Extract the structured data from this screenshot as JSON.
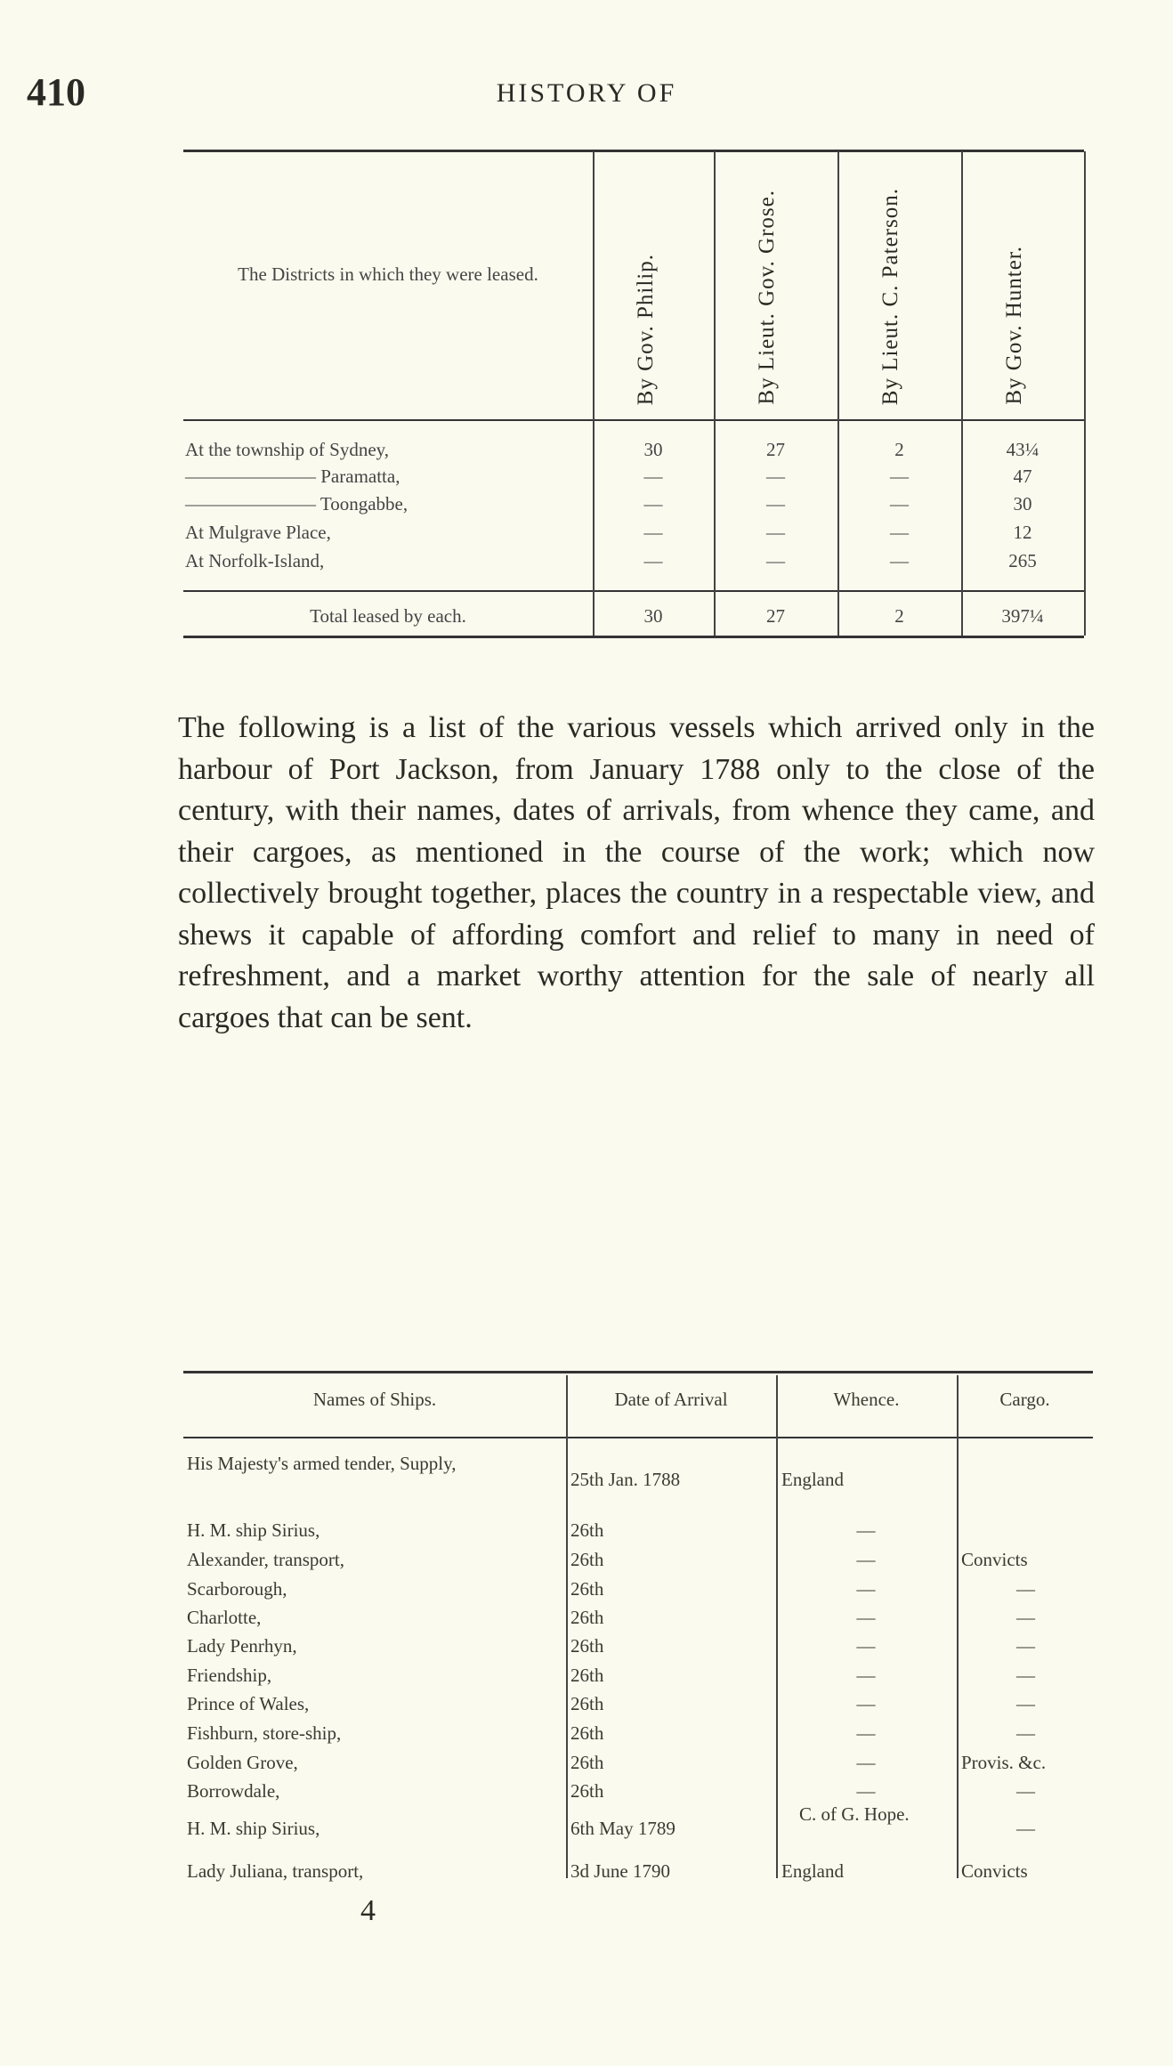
{
  "header": {
    "page_number": "410",
    "running_head": "HISTORY OF"
  },
  "table1": {
    "district_header": "The Districts in which they were leased.",
    "columns": [
      "By Gov. Philip.",
      "By Lieut. Gov. Grose.",
      "By Lieut. C. Paterson.",
      "By Gov. Hunter."
    ],
    "rows": [
      {
        "district": "At the township of Sydney,",
        "values": [
          "30",
          "27",
          "2",
          "43¼"
        ]
      },
      {
        "district": "——————— Paramatta,",
        "values": [
          "—",
          "—",
          "—",
          "47"
        ]
      },
      {
        "district": "——————— Toongabbe,",
        "values": [
          "—",
          "—",
          "—",
          "30"
        ]
      },
      {
        "district": "At Mulgrave Place,",
        "values": [
          "—",
          "—",
          "—",
          "12"
        ]
      },
      {
        "district": "At Norfolk-Island,",
        "values": [
          "—",
          "—",
          "—",
          "265"
        ]
      }
    ],
    "total": {
      "label": "Total leased by each.",
      "values": [
        "30",
        "27",
        "2",
        "397¼"
      ]
    }
  },
  "paragraph": "The following is a list of the various vessels which arrived only in the harbour of Port Jackson, from January 1788 only to the close of the century, with their names, dates of arrivals, from whence they came, and their cargoes, as mentioned in the course of the work; which now collectively brought together, places the country in a respectable view, and shews it capable of affording comfort and relief to many in need of refreshment, and a market worthy attention for the sale of nearly all cargoes that can be sent.",
  "table2": {
    "columns": [
      "Names of Ships.",
      "Date of Arrival",
      "Whence.",
      "Cargo."
    ],
    "rows": [
      {
        "name": "His Majesty's armed tender, Supply,",
        "date": "25th Jan. 1788",
        "whence": "England",
        "cargo": ""
      },
      {
        "name": "H. M. ship Sirius,",
        "date": "26th",
        "whence": "—",
        "cargo": ""
      },
      {
        "name": "Alexander, transport,",
        "date": "26th",
        "whence": "—",
        "cargo": "Convicts"
      },
      {
        "name": "Scarborough,",
        "date": "26th",
        "whence": "—",
        "cargo": "—"
      },
      {
        "name": "Charlotte,",
        "date": "26th",
        "whence": "—",
        "cargo": "—"
      },
      {
        "name": "Lady Penrhyn,",
        "date": "26th",
        "whence": "—",
        "cargo": "—"
      },
      {
        "name": "Friendship,",
        "date": "26th",
        "whence": "—",
        "cargo": "—"
      },
      {
        "name": "Prince of Wales,",
        "date": "26th",
        "whence": "—",
        "cargo": "—"
      },
      {
        "name": "Fishburn, store-ship,",
        "date": "26th",
        "whence": "—",
        "cargo": "—"
      },
      {
        "name": "Golden Grove,",
        "date": "26th",
        "whence": "—",
        "cargo": "Provis. &c."
      },
      {
        "name": "Borrowdale,",
        "date": "26th",
        "whence": "—",
        "cargo": "—"
      },
      {
        "name": "H. M. ship Sirius,",
        "date": "6th May 1789",
        "whence": "C. of G. Hope.",
        "cargo": "—"
      },
      {
        "name": "Lady Juliana, transport,",
        "date": "3d June 1790",
        "whence": "England",
        "cargo": "Convicts"
      }
    ]
  },
  "footer": {
    "signature": "4"
  }
}
